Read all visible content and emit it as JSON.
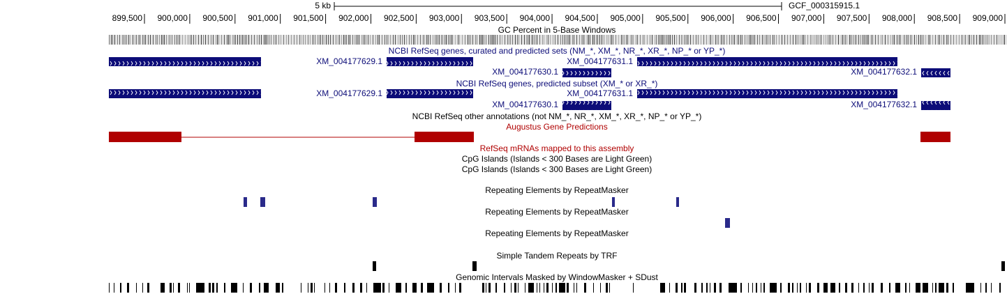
{
  "ruler": {
    "scale": "5 kb",
    "assembly": "GCF_000315915.1",
    "positions": [
      "899,500",
      "900,000",
      "900,500",
      "901,000",
      "901,500",
      "902,000",
      "902,500",
      "903,000",
      "903,500",
      "904,000",
      "904,500",
      "905,000",
      "905,500",
      "906,000",
      "906,500",
      "907,000",
      "907,500",
      "908,000",
      "908,500",
      "909,000"
    ]
  },
  "tracks": {
    "gc_percent": "GC Percent in 5-Base Windows",
    "refseq_curated": {
      "title": "NCBI RefSeq genes, curated and predicted sets (NM_*, XM_*, NR_*, XR_*, NP_* or YP_*)",
      "genes": [
        "XM_004177629.1",
        "XM_004177631.1",
        "XM_004177630.1",
        "XM_004177632.1"
      ]
    },
    "refseq_predicted": {
      "title": "NCBI RefSeq genes, predicted subset (XM_* or XR_*)",
      "genes": [
        "XM_004177629.1",
        "XM_004177631.1",
        "XM_004177630.1",
        "XM_004177632.1"
      ]
    },
    "refseq_other": "NCBI RefSeq other annotations (not NM_*, NR_*, XM_*, XR_*, NP_* or YP_*)",
    "augustus": "Augustus Gene Predictions",
    "refseq_mrna": "RefSeq mRNAs mapped to this assembly",
    "cpg": [
      "CpG Islands (Islands < 300 Bases are Light Green)",
      "CpG Islands (Islands < 300 Bases are Light Green)"
    ],
    "repeatmasker": [
      "Repeating Elements by RepeatMasker",
      "Repeating Elements by RepeatMasker",
      "Repeating Elements by RepeatMasker"
    ],
    "trf": "Simple Tandem Repeats by TRF",
    "windowmasker": "Genomic Intervals Masked by WindowMasker + SDust"
  }
}
